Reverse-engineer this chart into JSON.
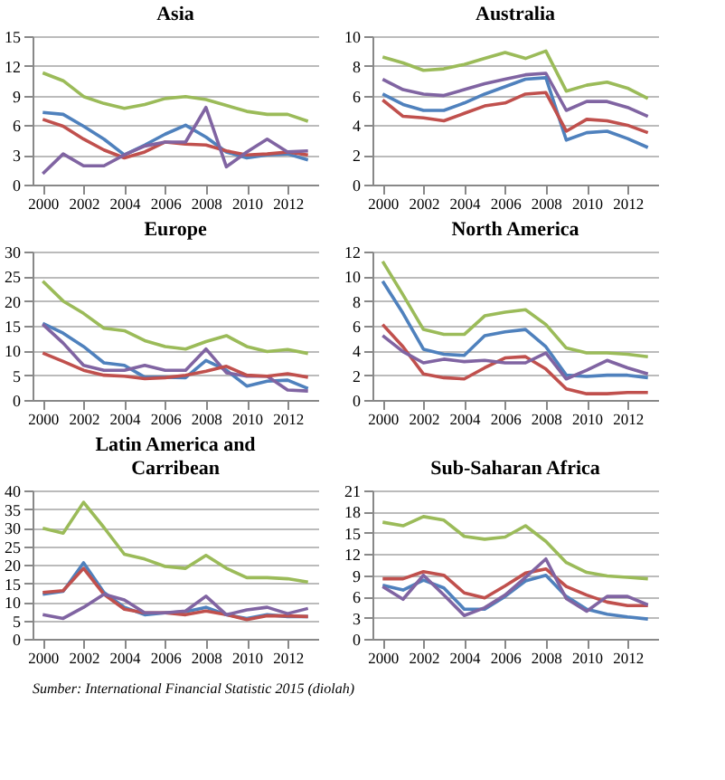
{
  "chart_data": [
    {
      "type": "line",
      "title": "Asia",
      "x": [
        2000,
        2001,
        2002,
        2003,
        2004,
        2005,
        2006,
        2007,
        2008,
        2009,
        2010,
        2011,
        2012,
        2013
      ],
      "xlim": [
        1999.5,
        2013.5
      ],
      "xticks": [
        2000,
        2002,
        2004,
        2006,
        2008,
        2010,
        2012
      ],
      "ylim": [
        0,
        15
      ],
      "yticks": [
        0,
        3,
        6,
        9,
        12,
        15
      ],
      "grid": "y",
      "marker": "none",
      "line_style": "solid",
      "series": [
        {
          "color": "#9bbb59",
          "values": [
            11.3,
            10.5,
            8.9,
            8.2,
            7.7,
            8.1,
            8.7,
            8.9,
            8.6,
            8.0,
            7.4,
            7.1,
            7.1,
            6.4
          ]
        },
        {
          "color": "#4f81bd",
          "values": [
            7.3,
            7.1,
            5.9,
            4.6,
            3.0,
            4.0,
            5.1,
            6.0,
            4.8,
            3.3,
            2.7,
            3.0,
            3.1,
            2.5
          ]
        },
        {
          "color": "#c0504d",
          "values": [
            6.6,
            5.9,
            4.6,
            3.5,
            2.7,
            3.3,
            4.3,
            4.1,
            4.0,
            3.4,
            3.0,
            3.1,
            3.3,
            3.0
          ]
        },
        {
          "color": "#8064a2",
          "values": [
            1.1,
            3.1,
            1.9,
            1.9,
            3.0,
            3.9,
            4.3,
            4.3,
            7.8,
            1.8,
            3.3,
            4.6,
            3.3,
            3.4
          ]
        }
      ]
    },
    {
      "type": "line",
      "title": "Australia",
      "x": [
        2000,
        2001,
        2002,
        2003,
        2004,
        2005,
        2006,
        2007,
        2008,
        2009,
        2010,
        2011,
        2012,
        2013
      ],
      "xlim": [
        1999.5,
        2013.5
      ],
      "xticks": [
        2000,
        2002,
        2004,
        2006,
        2008,
        2010,
        2012
      ],
      "ylim": [
        0,
        10
      ],
      "yticks": [
        0,
        2,
        4,
        6,
        8,
        10
      ],
      "grid": "y",
      "marker": "none",
      "line_style": "solid",
      "series": [
        {
          "color": "#9bbb59",
          "values": [
            8.6,
            8.2,
            7.7,
            7.8,
            8.1,
            8.5,
            8.9,
            8.5,
            9.0,
            6.3,
            6.7,
            6.9,
            6.5,
            5.8
          ]
        },
        {
          "color": "#8064a2",
          "values": [
            7.1,
            6.4,
            6.1,
            6.0,
            6.4,
            6.8,
            7.1,
            7.4,
            7.5,
            5.0,
            5.6,
            5.6,
            5.2,
            4.6
          ]
        },
        {
          "color": "#4f81bd",
          "values": [
            6.1,
            5.4,
            5.0,
            5.0,
            5.5,
            6.1,
            6.6,
            7.1,
            7.2,
            3.0,
            3.5,
            3.6,
            3.1,
            2.5
          ]
        },
        {
          "color": "#c0504d",
          "values": [
            5.7,
            4.6,
            4.5,
            4.3,
            4.8,
            5.3,
            5.5,
            6.1,
            6.2,
            3.6,
            4.4,
            4.3,
            4.0,
            3.5
          ]
        }
      ]
    },
    {
      "type": "line",
      "title": "Europe",
      "x": [
        2000,
        2001,
        2002,
        2003,
        2004,
        2005,
        2006,
        2007,
        2008,
        2009,
        2010,
        2011,
        2012,
        2013
      ],
      "xlim": [
        1999.5,
        2013.5
      ],
      "xticks": [
        2000,
        2002,
        2004,
        2006,
        2008,
        2010,
        2012
      ],
      "ylim": [
        0,
        30
      ],
      "yticks": [
        0,
        5,
        10,
        15,
        20,
        25,
        30
      ],
      "grid": "y",
      "marker": "none",
      "line_style": "solid",
      "series": [
        {
          "color": "#9bbb59",
          "values": [
            24.0,
            20.0,
            17.5,
            14.5,
            14.0,
            12.0,
            10.8,
            10.3,
            11.8,
            13.0,
            10.8,
            9.8,
            10.2,
            9.4
          ]
        },
        {
          "color": "#4f81bd",
          "values": [
            15.5,
            13.5,
            10.8,
            7.5,
            7.0,
            4.6,
            4.6,
            4.5,
            8.0,
            6.0,
            2.8,
            3.8,
            4.0,
            2.3
          ]
        },
        {
          "color": "#8064a2",
          "values": [
            15.3,
            11.5,
            7.0,
            6.0,
            6.0,
            7.0,
            6.0,
            6.0,
            10.3,
            5.5,
            4.8,
            4.8,
            2.0,
            1.8
          ]
        },
        {
          "color": "#c0504d",
          "values": [
            9.5,
            7.8,
            6.0,
            5.0,
            4.8,
            4.3,
            4.5,
            5.0,
            5.8,
            6.8,
            5.0,
            4.8,
            5.3,
            4.6
          ]
        }
      ]
    },
    {
      "type": "line",
      "title": "North America",
      "x": [
        2000,
        2001,
        2002,
        2003,
        2004,
        2005,
        2006,
        2007,
        2008,
        2009,
        2010,
        2011,
        2012,
        2013
      ],
      "xlim": [
        1999.5,
        2013.5
      ],
      "xticks": [
        2000,
        2002,
        2004,
        2006,
        2008,
        2010,
        2012
      ],
      "ylim": [
        0,
        12
      ],
      "yticks": [
        0,
        2,
        4,
        6,
        8,
        10,
        12
      ],
      "grid": "y",
      "marker": "none",
      "line_style": "solid",
      "series": [
        {
          "color": "#9bbb59",
          "values": [
            11.2,
            8.5,
            5.7,
            5.3,
            5.3,
            6.8,
            7.1,
            7.3,
            6.1,
            4.2,
            3.8,
            3.8,
            3.7,
            3.5
          ]
        },
        {
          "color": "#4f81bd",
          "values": [
            9.6,
            7.0,
            4.1,
            3.7,
            3.6,
            5.2,
            5.5,
            5.7,
            4.3,
            2.0,
            1.9,
            2.0,
            2.0,
            1.8
          ]
        },
        {
          "color": "#c0504d",
          "values": [
            6.1,
            4.3,
            2.1,
            1.8,
            1.7,
            2.6,
            3.4,
            3.5,
            2.5,
            0.9,
            0.5,
            0.5,
            0.6,
            0.6
          ]
        },
        {
          "color": "#8064a2",
          "values": [
            5.2,
            3.9,
            3.0,
            3.3,
            3.1,
            3.2,
            3.0,
            3.0,
            3.8,
            1.7,
            2.4,
            3.2,
            2.6,
            2.1
          ]
        }
      ]
    },
    {
      "type": "line",
      "title": "Latin America and Carribean",
      "x": [
        2000,
        2001,
        2002,
        2003,
        2004,
        2005,
        2006,
        2007,
        2008,
        2009,
        2010,
        2011,
        2012,
        2013
      ],
      "xlim": [
        1999.5,
        2013.5
      ],
      "xticks": [
        2000,
        2002,
        2004,
        2006,
        2008,
        2010,
        2012
      ],
      "ylim": [
        0,
        40
      ],
      "yticks": [
        0,
        5,
        10,
        15,
        20,
        25,
        30,
        35,
        40
      ],
      "grid": "y",
      "marker": "none",
      "line_style": "solid",
      "series": [
        {
          "color": "#9bbb59",
          "values": [
            29.8,
            28.5,
            36.8,
            30.0,
            22.8,
            21.5,
            19.5,
            19.0,
            22.5,
            19.0,
            16.5,
            16.5,
            16.2,
            15.3
          ]
        },
        {
          "color": "#4f81bd",
          "values": [
            12.0,
            12.8,
            20.5,
            12.5,
            8.5,
            6.5,
            7.0,
            7.3,
            8.5,
            6.5,
            5.5,
            6.5,
            6.0,
            6.0
          ]
        },
        {
          "color": "#c0504d",
          "values": [
            12.5,
            13.0,
            19.0,
            12.0,
            8.0,
            7.0,
            7.0,
            6.5,
            7.5,
            6.5,
            5.2,
            6.2,
            6.2,
            6.0
          ]
        },
        {
          "color": "#8064a2",
          "values": [
            6.5,
            5.5,
            8.5,
            12.0,
            10.5,
            7.0,
            7.0,
            7.5,
            11.5,
            6.5,
            7.8,
            8.5,
            6.8,
            8.2
          ]
        }
      ],
      "annotations": [
        "Sumber: International Financial Statistic 2015 (diolah)"
      ]
    },
    {
      "type": "line",
      "title": "Sub-Saharan Africa",
      "x": [
        2000,
        2001,
        2002,
        2003,
        2004,
        2005,
        2006,
        2007,
        2008,
        2009,
        2010,
        2011,
        2012,
        2013
      ],
      "xlim": [
        1999.5,
        2013.5
      ],
      "xticks": [
        2000,
        2002,
        2004,
        2006,
        2008,
        2010,
        2012
      ],
      "ylim": [
        0,
        21
      ],
      "yticks": [
        0,
        3,
        6,
        9,
        12,
        15,
        18,
        21
      ],
      "grid": "y",
      "marker": "none",
      "line_style": "solid",
      "series": [
        {
          "color": "#9bbb59",
          "values": [
            16.5,
            16.0,
            17.3,
            16.8,
            14.5,
            14.1,
            14.4,
            16.0,
            13.8,
            10.8,
            9.4,
            8.9,
            8.7,
            8.5
          ]
        },
        {
          "color": "#c0504d",
          "values": [
            8.5,
            8.5,
            9.5,
            9.0,
            6.5,
            5.8,
            7.5,
            9.3,
            9.9,
            7.4,
            6.2,
            5.2,
            4.7,
            4.7
          ]
        },
        {
          "color": "#4f81bd",
          "values": [
            7.6,
            6.9,
            8.3,
            7.2,
            4.2,
            4.2,
            6.0,
            8.2,
            9.0,
            6.0,
            4.2,
            3.5,
            3.1,
            2.8
          ]
        },
        {
          "color": "#8064a2",
          "values": [
            7.4,
            5.6,
            9.0,
            6.2,
            3.3,
            4.4,
            6.2,
            8.7,
            11.3,
            5.7,
            3.9,
            6.0,
            6.0,
            4.8
          ]
        }
      ]
    }
  ]
}
